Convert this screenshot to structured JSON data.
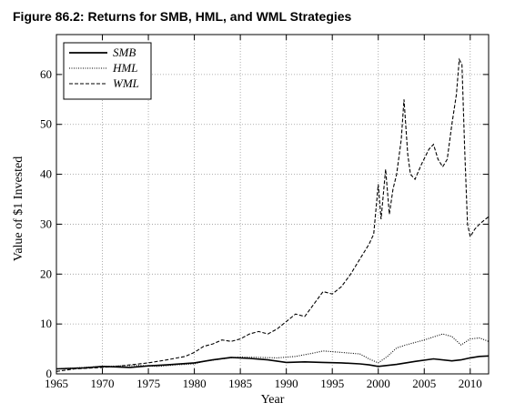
{
  "figure_title": "Figure 86.2: Returns for SMB, HML, and WML Strategies",
  "chart_data": {
    "type": "line",
    "title": "Figure 86.2: Returns for SMB, HML, and WML Strategies",
    "xlabel": "Year",
    "ylabel": "Value of $1 Invested",
    "xlim": [
      1965,
      2012
    ],
    "ylim": [
      0,
      68
    ],
    "x_ticks": [
      1965,
      1970,
      1975,
      1980,
      1985,
      1990,
      1995,
      2000,
      2005,
      2010
    ],
    "y_ticks": [
      0,
      10,
      20,
      30,
      40,
      50,
      60
    ],
    "grid": "dotted",
    "legend_position": "top-left",
    "series": [
      {
        "name": "SMB",
        "style": "solid",
        "points": [
          [
            1965,
            1
          ],
          [
            1968,
            1.2
          ],
          [
            1970,
            1.5
          ],
          [
            1973,
            1.3
          ],
          [
            1975,
            1.6
          ],
          [
            1977,
            1.8
          ],
          [
            1980,
            2.2
          ],
          [
            1982,
            2.8
          ],
          [
            1984,
            3.3
          ],
          [
            1986,
            3.1
          ],
          [
            1988,
            2.8
          ],
          [
            1990,
            2.3
          ],
          [
            1992,
            2.4
          ],
          [
            1994,
            2.3
          ],
          [
            1996,
            2.2
          ],
          [
            1998,
            2.0
          ],
          [
            1999,
            1.8
          ],
          [
            2000,
            1.5
          ],
          [
            2002,
            1.9
          ],
          [
            2004,
            2.5
          ],
          [
            2006,
            3.0
          ],
          [
            2008,
            2.6
          ],
          [
            2009,
            2.8
          ],
          [
            2010,
            3.2
          ],
          [
            2011,
            3.5
          ],
          [
            2012,
            3.6
          ]
        ]
      },
      {
        "name": "HML",
        "style": "dotted",
        "points": [
          [
            1965,
            1
          ],
          [
            1968,
            1.3
          ],
          [
            1970,
            1.5
          ],
          [
            1972,
            1.6
          ],
          [
            1974,
            1.7
          ],
          [
            1976,
            1.5
          ],
          [
            1978,
            1.8
          ],
          [
            1980,
            2.0
          ],
          [
            1981,
            2.5
          ],
          [
            1983,
            3.0
          ],
          [
            1985,
            3.4
          ],
          [
            1987,
            3.3
          ],
          [
            1989,
            3.2
          ],
          [
            1991,
            3.5
          ],
          [
            1993,
            4.2
          ],
          [
            1994,
            4.6
          ],
          [
            1996,
            4.3
          ],
          [
            1998,
            4.0
          ],
          [
            1999,
            3.0
          ],
          [
            2000,
            2.2
          ],
          [
            2001,
            3.5
          ],
          [
            2002,
            5.2
          ],
          [
            2003,
            5.8
          ],
          [
            2005,
            6.8
          ],
          [
            2007,
            8.0
          ],
          [
            2008,
            7.5
          ],
          [
            2009,
            5.8
          ],
          [
            2010,
            7.0
          ],
          [
            2011,
            7.2
          ],
          [
            2012,
            6.5
          ]
        ]
      },
      {
        "name": "WML",
        "style": "dashed",
        "points": [
          [
            1965,
            0.5
          ],
          [
            1967,
            1.0
          ],
          [
            1970,
            1.3
          ],
          [
            1972,
            1.6
          ],
          [
            1975,
            2.2
          ],
          [
            1977,
            2.8
          ],
          [
            1979,
            3.5
          ],
          [
            1980,
            4.3
          ],
          [
            1981,
            5.5
          ],
          [
            1982,
            6.0
          ],
          [
            1983,
            6.8
          ],
          [
            1984,
            6.5
          ],
          [
            1985,
            7.0
          ],
          [
            1986,
            8.0
          ],
          [
            1987,
            8.5
          ],
          [
            1988,
            8.0
          ],
          [
            1989,
            9.0
          ],
          [
            1990,
            10.5
          ],
          [
            1991,
            12.0
          ],
          [
            1992,
            11.5
          ],
          [
            1993,
            14.0
          ],
          [
            1994,
            16.5
          ],
          [
            1995,
            16.0
          ],
          [
            1996,
            17.5
          ],
          [
            1997,
            20.0
          ],
          [
            1998,
            23.0
          ],
          [
            1999,
            26.0
          ],
          [
            1999.5,
            28.0
          ],
          [
            2000,
            38.0
          ],
          [
            2000.3,
            31.0
          ],
          [
            2000.8,
            41.0
          ],
          [
            2001.2,
            32.0
          ],
          [
            2001.6,
            37.0
          ],
          [
            2002,
            40.0
          ],
          [
            2002.5,
            47.0
          ],
          [
            2002.8,
            55.0
          ],
          [
            2003.2,
            44.0
          ],
          [
            2003.5,
            40.0
          ],
          [
            2004,
            39.0
          ],
          [
            2004.7,
            42.0
          ],
          [
            2005.5,
            45.0
          ],
          [
            2006,
            46.0
          ],
          [
            2006.5,
            43.0
          ],
          [
            2007,
            41.5
          ],
          [
            2007.5,
            43.0
          ],
          [
            2008,
            50.0
          ],
          [
            2008.5,
            56.0
          ],
          [
            2008.8,
            63.0
          ],
          [
            2009.1,
            62.0
          ],
          [
            2009.4,
            45.0
          ],
          [
            2009.7,
            30.0
          ],
          [
            2010,
            27.5
          ],
          [
            2010.5,
            29.0
          ],
          [
            2011,
            30.0
          ],
          [
            2012,
            31.5
          ]
        ]
      }
    ]
  }
}
